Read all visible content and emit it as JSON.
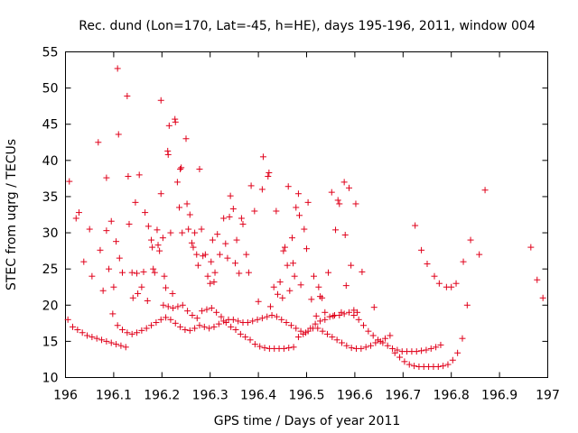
{
  "chart_data": {
    "type": "scatter",
    "title": "Rec. dund (Lon=170, Lat=-45, h=HE), days 195-196, 2011, window 004",
    "xlabel": "GPS time / Days of year 2011",
    "ylabel": "STEC from uqrg / TECUs",
    "xlim": [
      196,
      197
    ],
    "ylim": [
      10,
      55
    ],
    "x_ticks": [
      "196",
      "196.1",
      "196.2",
      "196.3",
      "196.4",
      "196.5",
      "196.6",
      "196.7",
      "196.8",
      "196.9",
      "197"
    ],
    "y_ticks": [
      "10",
      "15",
      "20",
      "25",
      "30",
      "35",
      "40",
      "45",
      "50",
      "55"
    ],
    "grid": false,
    "legend": "none",
    "marker": "plus",
    "color": "#e0001a",
    "series": [
      {
        "points": [
          [
            196.008,
            37.1
          ],
          [
            196.022,
            32.0
          ],
          [
            196.028,
            32.8
          ],
          [
            196.038,
            26.0
          ],
          [
            196.05,
            30.5
          ],
          [
            196.055,
            24.0
          ],
          [
            196.068,
            42.5
          ],
          [
            196.072,
            27.6
          ],
          [
            196.078,
            22.0
          ],
          [
            196.085,
            30.3
          ],
          [
            196.085,
            37.6
          ],
          [
            196.09,
            25.0
          ],
          [
            196.095,
            31.6
          ],
          [
            196.1,
            22.5
          ],
          [
            196.105,
            28.8
          ],
          [
            196.108,
            52.7
          ],
          [
            196.11,
            43.6
          ],
          [
            196.112,
            26.5
          ],
          [
            196.118,
            24.5
          ],
          [
            196.128,
            48.9
          ],
          [
            196.13,
            37.8
          ],
          [
            196.132,
            31.2
          ],
          [
            196.138,
            24.5
          ],
          [
            196.14,
            21.0
          ],
          [
            196.145,
            34.2
          ],
          [
            196.148,
            24.4
          ],
          [
            196.15,
            21.6
          ],
          [
            196.153,
            38.0
          ],
          [
            196.158,
            22.5
          ],
          [
            196.162,
            24.6
          ],
          [
            196.165,
            32.8
          ],
          [
            196.17,
            20.6
          ],
          [
            196.172,
            30.9
          ],
          [
            196.178,
            29.0
          ],
          [
            196.18,
            28.0
          ],
          [
            196.182,
            25.0
          ],
          [
            196.185,
            24.5
          ],
          [
            196.19,
            30.4
          ],
          [
            196.192,
            28.3
          ],
          [
            196.195,
            27.5
          ],
          [
            196.198,
            48.3
          ],
          [
            196.198,
            35.4
          ],
          [
            196.202,
            29.3
          ],
          [
            196.205,
            24.0
          ],
          [
            196.208,
            22.4
          ],
          [
            196.212,
            41.3
          ],
          [
            196.213,
            40.8
          ],
          [
            196.215,
            44.8
          ],
          [
            196.218,
            30.0
          ],
          [
            196.222,
            21.6
          ],
          [
            196.227,
            45.7
          ],
          [
            196.228,
            45.3
          ],
          [
            196.232,
            37.0
          ],
          [
            196.236,
            33.5
          ],
          [
            196.238,
            38.8
          ],
          [
            196.24,
            39.0
          ],
          [
            196.242,
            30.0
          ],
          [
            196.25,
            43.0
          ],
          [
            196.252,
            34.0
          ],
          [
            196.255,
            30.5
          ],
          [
            196.258,
            32.5
          ],
          [
            196.262,
            28.6
          ],
          [
            196.265,
            28.0
          ],
          [
            196.268,
            30.0
          ],
          [
            196.272,
            27.0
          ],
          [
            196.275,
            25.5
          ],
          [
            196.278,
            38.8
          ],
          [
            196.282,
            30.5
          ],
          [
            196.285,
            26.8
          ],
          [
            196.29,
            27.0
          ],
          [
            196.295,
            24.0
          ],
          [
            196.3,
            23.0
          ],
          [
            196.302,
            26.0
          ],
          [
            196.305,
            29.0
          ],
          [
            196.308,
            23.2
          ],
          [
            196.31,
            24.5
          ],
          [
            196.315,
            29.8
          ],
          [
            196.32,
            27.0
          ],
          [
            196.328,
            32.0
          ],
          [
            196.332,
            28.5
          ],
          [
            196.336,
            26.5
          ],
          [
            196.34,
            32.2
          ],
          [
            196.342,
            35.1
          ],
          [
            196.348,
            33.3
          ],
          [
            196.352,
            25.8
          ],
          [
            196.355,
            29.0
          ],
          [
            196.36,
            24.4
          ],
          [
            196.365,
            32.0
          ],
          [
            196.368,
            31.2
          ],
          [
            196.375,
            27.0
          ],
          [
            196.38,
            24.5
          ],
          [
            196.385,
            36.5
          ],
          [
            196.392,
            33.0
          ],
          [
            196.4,
            20.5
          ],
          [
            196.408,
            36.0
          ],
          [
            196.41,
            40.5
          ],
          [
            196.42,
            37.8
          ],
          [
            196.422,
            38.3
          ],
          [
            196.425,
            19.8
          ],
          [
            196.432,
            22.5
          ],
          [
            196.437,
            33.0
          ],
          [
            196.44,
            21.5
          ],
          [
            196.445,
            23.2
          ],
          [
            196.45,
            21.0
          ],
          [
            196.452,
            27.5
          ],
          [
            196.455,
            28.0
          ],
          [
            196.46,
            25.5
          ],
          [
            196.462,
            36.4
          ],
          [
            196.465,
            22.0
          ],
          [
            196.47,
            29.3
          ],
          [
            196.472,
            25.8
          ],
          [
            196.475,
            24.0
          ],
          [
            196.478,
            33.5
          ],
          [
            196.483,
            35.4
          ],
          [
            196.485,
            32.4
          ],
          [
            196.488,
            22.8
          ],
          [
            196.495,
            30.5
          ],
          [
            196.5,
            27.8
          ],
          [
            196.503,
            34.2
          ],
          [
            196.51,
            20.8
          ],
          [
            196.515,
            24.0
          ],
          [
            196.52,
            18.5
          ],
          [
            196.525,
            22.5
          ],
          [
            196.528,
            21.2
          ],
          [
            196.532,
            21.0
          ],
          [
            196.538,
            19.0
          ],
          [
            196.545,
            24.5
          ],
          [
            196.552,
            35.6
          ],
          [
            196.555,
            18.5
          ],
          [
            196.56,
            30.4
          ],
          [
            196.565,
            34.5
          ],
          [
            196.568,
            34.0
          ],
          [
            196.572,
            19.0
          ],
          [
            196.578,
            37.0
          ],
          [
            196.58,
            29.7
          ],
          [
            196.582,
            22.7
          ],
          [
            196.588,
            36.2
          ],
          [
            196.592,
            25.5
          ],
          [
            196.598,
            19.3
          ],
          [
            196.602,
            34.0
          ],
          [
            196.605,
            19.0
          ],
          [
            196.615,
            24.6
          ],
          [
            196.64,
            19.7
          ],
          [
            196.725,
            31.0
          ],
          [
            196.738,
            27.6
          ],
          [
            196.75,
            25.7
          ],
          [
            196.765,
            24.0
          ],
          [
            196.775,
            23.0
          ],
          [
            196.79,
            22.5
          ],
          [
            196.8,
            22.5
          ],
          [
            196.81,
            23.0
          ],
          [
            196.825,
            26.0
          ],
          [
            196.84,
            29.0
          ],
          [
            196.858,
            27.0
          ],
          [
            196.87,
            35.9
          ],
          [
            196.965,
            28.0
          ],
          [
            196.978,
            23.5
          ],
          [
            196.99,
            21.0
          ],
          [
            196.005,
            18.0
          ],
          [
            196.015,
            17.0
          ],
          [
            196.025,
            16.6
          ],
          [
            196.035,
            16.2
          ],
          [
            196.045,
            15.8
          ],
          [
            196.055,
            15.6
          ],
          [
            196.065,
            15.4
          ],
          [
            196.075,
            15.2
          ],
          [
            196.085,
            15.0
          ],
          [
            196.095,
            14.8
          ],
          [
            196.105,
            14.6
          ],
          [
            196.115,
            14.4
          ],
          [
            196.125,
            14.2
          ],
          [
            196.098,
            18.8
          ],
          [
            196.108,
            17.2
          ],
          [
            196.118,
            16.6
          ],
          [
            196.128,
            16.2
          ],
          [
            196.138,
            16.0
          ],
          [
            196.148,
            16.2
          ],
          [
            196.158,
            16.5
          ],
          [
            196.168,
            16.8
          ],
          [
            196.178,
            17.2
          ],
          [
            196.188,
            17.6
          ],
          [
            196.198,
            18.0
          ],
          [
            196.208,
            18.3
          ],
          [
            196.218,
            18.0
          ],
          [
            196.228,
            17.5
          ],
          [
            196.238,
            17.0
          ],
          [
            196.248,
            16.6
          ],
          [
            196.258,
            16.5
          ],
          [
            196.268,
            16.8
          ],
          [
            196.278,
            17.2
          ],
          [
            196.288,
            17.0
          ],
          [
            196.298,
            16.8
          ],
          [
            196.308,
            17.0
          ],
          [
            196.318,
            17.4
          ],
          [
            196.328,
            17.8
          ],
          [
            196.338,
            18.0
          ],
          [
            196.348,
            18.0
          ],
          [
            196.358,
            17.8
          ],
          [
            196.368,
            17.6
          ],
          [
            196.378,
            17.6
          ],
          [
            196.388,
            17.8
          ],
          [
            196.398,
            18.0
          ],
          [
            196.408,
            18.2
          ],
          [
            196.418,
            18.4
          ],
          [
            196.428,
            18.6
          ],
          [
            196.438,
            18.4
          ],
          [
            196.448,
            18.0
          ],
          [
            196.458,
            17.6
          ],
          [
            196.468,
            17.2
          ],
          [
            196.478,
            16.8
          ],
          [
            196.488,
            16.4
          ],
          [
            196.498,
            16.2
          ],
          [
            196.508,
            16.8
          ],
          [
            196.518,
            17.4
          ],
          [
            196.528,
            17.8
          ],
          [
            196.538,
            18.0
          ],
          [
            196.548,
            18.4
          ],
          [
            196.558,
            18.6
          ],
          [
            196.568,
            18.6
          ],
          [
            196.578,
            18.8
          ],
          [
            196.588,
            19.0
          ],
          [
            196.598,
            18.6
          ],
          [
            196.608,
            18.0
          ],
          [
            196.618,
            17.2
          ],
          [
            196.628,
            16.4
          ],
          [
            196.638,
            15.8
          ],
          [
            196.648,
            15.2
          ],
          [
            196.658,
            14.8
          ],
          [
            196.668,
            14.4
          ],
          [
            196.678,
            14.0
          ],
          [
            196.688,
            13.8
          ],
          [
            196.698,
            13.6
          ],
          [
            196.708,
            13.6
          ],
          [
            196.718,
            13.6
          ],
          [
            196.728,
            13.6
          ],
          [
            196.738,
            13.7
          ],
          [
            196.748,
            13.8
          ],
          [
            196.758,
            14.0
          ],
          [
            196.768,
            14.2
          ],
          [
            196.778,
            14.5
          ],
          [
            196.203,
            20.0
          ],
          [
            196.213,
            19.8
          ],
          [
            196.223,
            19.6
          ],
          [
            196.233,
            19.8
          ],
          [
            196.243,
            20.0
          ],
          [
            196.253,
            19.2
          ],
          [
            196.263,
            18.6
          ],
          [
            196.273,
            18.2
          ],
          [
            196.283,
            19.2
          ],
          [
            196.293,
            19.4
          ],
          [
            196.303,
            19.6
          ],
          [
            196.313,
            19.0
          ],
          [
            196.323,
            18.4
          ],
          [
            196.333,
            17.6
          ],
          [
            196.343,
            17.0
          ],
          [
            196.353,
            16.6
          ],
          [
            196.363,
            16.0
          ],
          [
            196.373,
            15.6
          ],
          [
            196.383,
            15.2
          ],
          [
            196.393,
            14.6
          ],
          [
            196.403,
            14.3
          ],
          [
            196.413,
            14.1
          ],
          [
            196.423,
            14.0
          ],
          [
            196.433,
            14.0
          ],
          [
            196.443,
            14.0
          ],
          [
            196.453,
            14.0
          ],
          [
            196.463,
            14.1
          ],
          [
            196.473,
            14.2
          ],
          [
            196.483,
            15.6
          ],
          [
            196.493,
            16.0
          ],
          [
            196.503,
            16.4
          ],
          [
            196.513,
            16.8
          ],
          [
            196.523,
            16.8
          ],
          [
            196.533,
            16.4
          ],
          [
            196.543,
            16.0
          ],
          [
            196.553,
            15.6
          ],
          [
            196.563,
            15.2
          ],
          [
            196.573,
            14.8
          ],
          [
            196.583,
            14.4
          ],
          [
            196.593,
            14.1
          ],
          [
            196.603,
            14.0
          ],
          [
            196.613,
            14.0
          ],
          [
            196.623,
            14.2
          ],
          [
            196.633,
            14.4
          ],
          [
            196.643,
            14.8
          ],
          [
            196.653,
            15.0
          ],
          [
            196.663,
            15.4
          ],
          [
            196.673,
            15.8
          ],
          [
            196.683,
            13.4
          ],
          [
            196.693,
            12.8
          ],
          [
            196.703,
            12.2
          ],
          [
            196.713,
            11.8
          ],
          [
            196.723,
            11.6
          ],
          [
            196.733,
            11.5
          ],
          [
            196.743,
            11.5
          ],
          [
            196.753,
            11.5
          ],
          [
            196.763,
            11.5
          ],
          [
            196.773,
            11.5
          ],
          [
            196.783,
            11.6
          ],
          [
            196.793,
            11.8
          ],
          [
            196.803,
            12.4
          ],
          [
            196.813,
            13.4
          ],
          [
            196.823,
            15.4
          ],
          [
            196.833,
            20.0
          ]
        ]
      }
    ]
  }
}
